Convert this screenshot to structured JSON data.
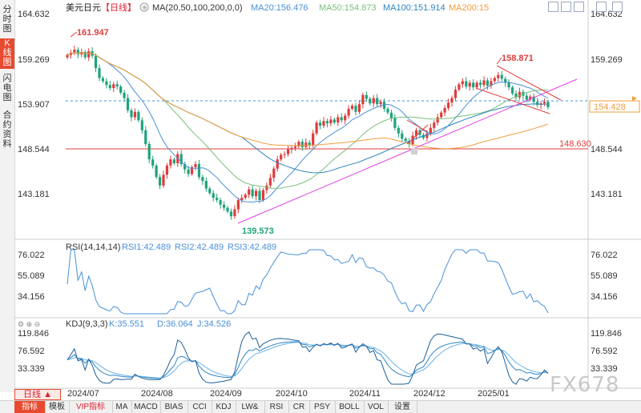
{
  "sidebar": {
    "tabs": [
      {
        "label": "分时图",
        "active": false
      },
      {
        "label": "K线图",
        "active": true
      },
      {
        "label": "闪电图",
        "active": false
      },
      {
        "label": "合约资料",
        "active": false
      }
    ]
  },
  "header": {
    "symbol": "美元日元",
    "period_tag": "【日线】",
    "ma_label": "MA(20,50,100,200,0,0)",
    "ma20": "MA20:156.476",
    "ma50": "MA50:154.873",
    "ma100": "MA100:151.914",
    "ma200": "MA200:15"
  },
  "colors": {
    "up": "#e03c3c",
    "down": "#1fa37b",
    "ma20": "#4a90d9",
    "ma50": "#7ac07a",
    "ma100": "#2e86c1",
    "ma200": "#f39c3c",
    "trendline": "#e040e0",
    "channel": "#e03c3c"
  },
  "price_axis": {
    "ticks": [
      "164.632",
      "159.269",
      "153.907",
      "148.544",
      "143.181"
    ],
    "current_price": "154.428",
    "level_line": "148.630"
  },
  "annotations": {
    "high1": "161.947",
    "high2": "158.871",
    "low": "139.573"
  },
  "rsi": {
    "label": "RSI(14,14,14)",
    "rsi1": "RSI1:42.489",
    "rsi2": "RSI2:42.489",
    "rsi3": "RSI3:42.489",
    "ticks": [
      "76.022",
      "55.089",
      "34.156"
    ]
  },
  "kdj": {
    "label": "KDJ(9,3,3)",
    "k": "K:35.551",
    "d": "D:36.064",
    "j": "J:34.526",
    "ticks": [
      "119.846",
      "76.592",
      "33.339"
    ]
  },
  "x_axis": {
    "labels": [
      "2024/07",
      "2024/08",
      "2024/09",
      "2024/10",
      "2024/11",
      "2024/12",
      "2025/01"
    ]
  },
  "period_button": "日线 ▲",
  "bottom_tabs": [
    "指标",
    "模板",
    "VIP指标",
    "MA",
    "MACD",
    "BIAS",
    "CCI",
    "KDJ",
    "LW&",
    "RSI",
    "CR",
    "PSY",
    "BOLL",
    "VOL",
    "设置"
  ],
  "watermark": "FX678",
  "chart_data": {
    "type": "candlestick",
    "y_range": [
      137.5,
      166.5
    ],
    "price_ticks": [
      164.632,
      159.269,
      153.907,
      148.544,
      143.181
    ],
    "closes": [
      161.2,
      161.5,
      161.9,
      161.3,
      161.6,
      160.9,
      161.7,
      161.1,
      159.5,
      158.2,
      157.8,
      157.3,
      156.9,
      157.4,
      157.1,
      156.3,
      155.6,
      154.0,
      153.1,
      153.8,
      152.7,
      151.4,
      149.6,
      147.6,
      146.8,
      145.3,
      144.2,
      145.6,
      146.8,
      147.6,
      147.1,
      148.3,
      147.0,
      146.3,
      145.7,
      146.6,
      147.0,
      145.3,
      144.8,
      143.8,
      143.2,
      142.6,
      142.3,
      141.7,
      141.3,
      140.8,
      140.2,
      141.1,
      142.3,
      142.6,
      143.0,
      143.7,
      142.8,
      143.5,
      142.3,
      143.6,
      144.2,
      145.2,
      146.4,
      147.6,
      148.2,
      148.3,
      148.9,
      149.1,
      149.3,
      149.9,
      149.2,
      149.8,
      149.5,
      151.0,
      152.4,
      152.0,
      152.6,
      152.3,
      152.8,
      152.4,
      153.1,
      152.7,
      153.3,
      154.2,
      154.6,
      153.8,
      154.8,
      156.0,
      155.5,
      154.9,
      155.6,
      154.8,
      155.1,
      154.2,
      153.7,
      153.0,
      151.7,
      151.0,
      150.3,
      150.0,
      149.6,
      150.7,
      151.4,
      150.8,
      150.4,
      151.0,
      151.7,
      152.4,
      153.1,
      153.7,
      154.3,
      155.0,
      155.6,
      156.7,
      157.4,
      157.8,
      157.1,
      157.6,
      157.0,
      157.6,
      157.3,
      157.9,
      157.2,
      157.8,
      158.2,
      158.6,
      158.1,
      157.6,
      157.0,
      156.2,
      155.7,
      156.4,
      155.9,
      155.4,
      155.8,
      155.1,
      154.7,
      154.9,
      155.1,
      154.4
    ]
  }
}
